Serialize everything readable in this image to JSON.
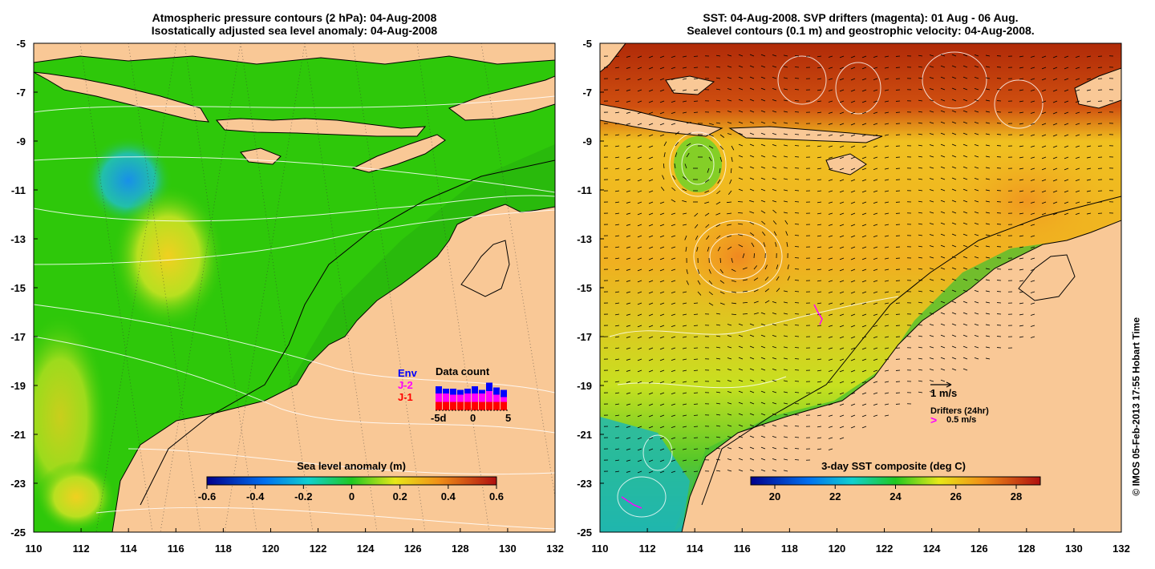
{
  "left_panel": {
    "title_line1": "Atmospheric pressure contours (2 hPa): 04-Aug-2008",
    "title_line2": "Isostatically adjusted sea level anomaly: 04-Aug-2008",
    "x_ticks": [
      "110",
      "112",
      "114",
      "116",
      "118",
      "120",
      "122",
      "124",
      "126",
      "128",
      "130",
      "132"
    ],
    "y_ticks": [
      "-5",
      "-7",
      "-9",
      "-11",
      "-13",
      "-15",
      "-17",
      "-19",
      "-21",
      "-23",
      "-25"
    ],
    "colorbar_title": "Sea level anomaly (m)",
    "colorbar_ticks": [
      "-0.6",
      "-0.4",
      "-0.2",
      "0",
      "0.2",
      "0.4",
      "0.6"
    ],
    "data_count": {
      "title": "Data count",
      "legend": [
        {
          "label": "Env",
          "color": "#0000ff"
        },
        {
          "label": "J-2",
          "color": "#ff00ff"
        },
        {
          "label": "J-1",
          "color": "#ff0000"
        }
      ],
      "x_labels": [
        "-5d",
        "0",
        "5"
      ],
      "bars": [
        {
          "j1": 0.35,
          "j2": 0.35,
          "env": 0.3
        },
        {
          "j1": 0.35,
          "j2": 0.35,
          "env": 0.2
        },
        {
          "j1": 0.35,
          "j2": 0.3,
          "env": 0.25
        },
        {
          "j1": 0.35,
          "j2": 0.3,
          "env": 0.2
        },
        {
          "j1": 0.35,
          "j2": 0.35,
          "env": 0.2
        },
        {
          "j1": 0.35,
          "j2": 0.35,
          "env": 0.3
        },
        {
          "j1": 0.35,
          "j2": 0.35,
          "env": 0.15
        },
        {
          "j1": 0.35,
          "j2": 0.45,
          "env": 0.35
        },
        {
          "j1": 0.35,
          "j2": 0.3,
          "env": 0.3
        },
        {
          "j1": 0.35,
          "j2": 0.2,
          "env": 0.3
        }
      ]
    }
  },
  "right_panel": {
    "title_line1": "SST: 04-Aug-2008. SVP drifters (magenta): 01 Aug - 06 Aug.",
    "title_line2": "Sealevel contours (0.1 m) and geostrophic velocity: 04-Aug-2008.",
    "x_ticks": [
      "110",
      "112",
      "114",
      "116",
      "118",
      "120",
      "122",
      "124",
      "126",
      "128",
      "130",
      "132"
    ],
    "y_ticks": [
      "-5",
      "-7",
      "-9",
      "-11",
      "-13",
      "-15",
      "-17",
      "-19",
      "-21",
      "-23",
      "-25"
    ],
    "colorbar_title": "3-day SST composite (deg C)",
    "colorbar_ticks": [
      "20",
      "22",
      "24",
      "26",
      "28"
    ],
    "velocity_label": "1 m/s",
    "drifters_label": "Drifters (24hr)",
    "drifter_speed_label": "0.5 m/s",
    "drifter_color": "#ff00ff"
  },
  "credit": "© IMOS 05-Feb-2013 17:55 Hobart Time",
  "colors": {
    "land": "#f9c896",
    "ocean_green": "#2ec80a",
    "cold": "#0a3cc8",
    "warm": "#e07010"
  }
}
